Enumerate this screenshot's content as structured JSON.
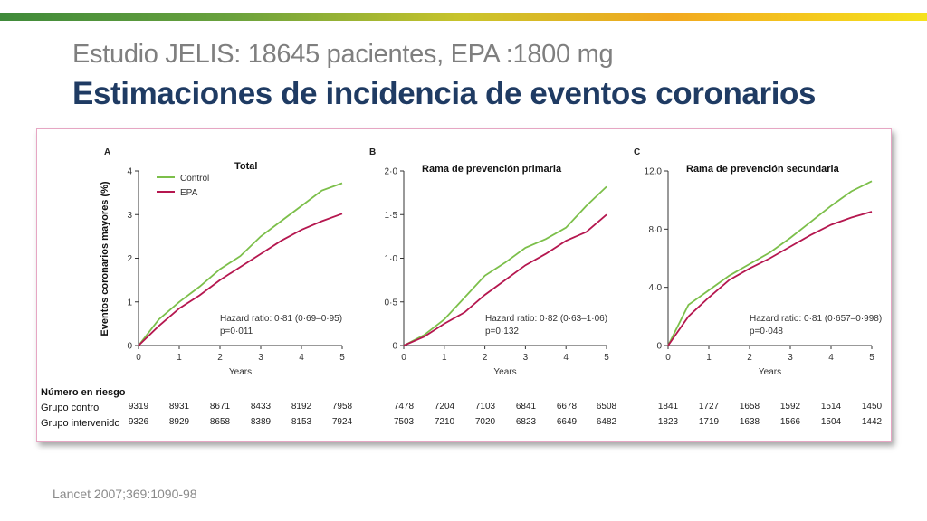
{
  "header": {
    "subtitle": "Estudio JELIS:  18645 pacientes, EPA :1800 mg",
    "title": "Estimaciones de incidencia de eventos coronarios"
  },
  "citation": "Lancet 2007;369:1090-98",
  "colors": {
    "control": "#7cbf4a",
    "epa": "#b5174f",
    "title": "#1f3b63",
    "accent_border": "#e6a6c3"
  },
  "shared": {
    "ylabel": "Eventos coronarios mayores  (%)",
    "xlabel": "Years",
    "risk_heading": "Número en riesgo",
    "risk_rows": [
      "Grupo control",
      "Grupo intervenido"
    ]
  },
  "chart_data": [
    {
      "type": "line",
      "panel_letter": "A",
      "title": "Total",
      "xlim": [
        0,
        5
      ],
      "ylim": [
        0,
        4
      ],
      "x_ticks": [
        0,
        1,
        2,
        3,
        4,
        5
      ],
      "y_ticks": [
        "0",
        "1",
        "2",
        "3",
        "4"
      ],
      "legend": [
        "Control",
        "EPA"
      ],
      "legend_position": "top-left",
      "series": [
        {
          "name": "Control",
          "x": [
            0,
            0.5,
            1,
            1.5,
            2,
            2.5,
            3,
            3.5,
            4,
            4.5,
            5
          ],
          "values": [
            0,
            0.6,
            1.0,
            1.35,
            1.75,
            2.05,
            2.5,
            2.85,
            3.2,
            3.55,
            3.72
          ]
        },
        {
          "name": "EPA",
          "x": [
            0,
            0.5,
            1,
            1.5,
            2,
            2.5,
            3,
            3.5,
            4,
            4.5,
            5
          ],
          "values": [
            0,
            0.45,
            0.85,
            1.15,
            1.5,
            1.8,
            2.1,
            2.4,
            2.65,
            2.85,
            3.02
          ]
        }
      ],
      "annotation": [
        "Hazard ratio: 0·81 (0·69–0·95)",
        "p=0·011"
      ],
      "risk": {
        "control": [
          9319,
          8931,
          8671,
          8433,
          8192,
          7958
        ],
        "epa": [
          9326,
          8929,
          8658,
          8389,
          8153,
          7924
        ]
      }
    },
    {
      "type": "line",
      "panel_letter": "B",
      "title": "Rama de prevención primaria",
      "xlim": [
        0,
        5
      ],
      "ylim": [
        0,
        2
      ],
      "x_ticks": [
        0,
        1,
        2,
        3,
        4,
        5
      ],
      "y_ticks": [
        "0",
        "0·5",
        "1·0",
        "1·5",
        "2·0"
      ],
      "series": [
        {
          "name": "Control",
          "x": [
            0,
            0.5,
            1,
            1.5,
            2,
            2.5,
            3,
            3.5,
            4,
            4.5,
            5
          ],
          "values": [
            0,
            0.12,
            0.3,
            0.55,
            0.8,
            0.95,
            1.12,
            1.22,
            1.35,
            1.6,
            1.82
          ]
        },
        {
          "name": "EPA",
          "x": [
            0,
            0.5,
            1,
            1.5,
            2,
            2.5,
            3,
            3.5,
            4,
            4.5,
            5
          ],
          "values": [
            0,
            0.1,
            0.25,
            0.38,
            0.58,
            0.75,
            0.92,
            1.05,
            1.2,
            1.3,
            1.5
          ]
        }
      ],
      "annotation": [
        "Hazard ratio: 0·82 (0·63–1·06)",
        "p=0·132"
      ],
      "risk": {
        "control": [
          7478,
          7204,
          7103,
          6841,
          6678,
          6508
        ],
        "epa": [
          7503,
          7210,
          7020,
          6823,
          6649,
          6482
        ]
      }
    },
    {
      "type": "line",
      "panel_letter": "C",
      "title": "Rama de prevención secundaria",
      "xlim": [
        0,
        5
      ],
      "ylim": [
        0,
        12
      ],
      "x_ticks": [
        0,
        1,
        2,
        3,
        4,
        5
      ],
      "y_ticks": [
        "0",
        "4·0",
        "8·0",
        "12.0"
      ],
      "y_tick_values": [
        0,
        4,
        8,
        12
      ],
      "series": [
        {
          "name": "Control",
          "x": [
            0,
            0.5,
            1,
            1.5,
            2,
            2.5,
            3,
            3.5,
            4,
            4.5,
            5
          ],
          "values": [
            0,
            2.8,
            3.8,
            4.8,
            5.6,
            6.4,
            7.4,
            8.5,
            9.6,
            10.6,
            11.3
          ]
        },
        {
          "name": "EPA",
          "x": [
            0,
            0.5,
            1,
            1.5,
            2,
            2.5,
            3,
            3.5,
            4,
            4.5,
            5
          ],
          "values": [
            0,
            2.0,
            3.3,
            4.5,
            5.3,
            6.0,
            6.8,
            7.6,
            8.3,
            8.8,
            9.2
          ]
        }
      ],
      "annotation": [
        "Hazard ratio: 0·81 (0·657–0·998)",
        "p=0·048"
      ],
      "risk": {
        "control": [
          1841,
          1727,
          1658,
          1592,
          1514,
          1450
        ],
        "epa": [
          1823,
          1719,
          1638,
          1566,
          1504,
          1442
        ]
      }
    }
  ]
}
